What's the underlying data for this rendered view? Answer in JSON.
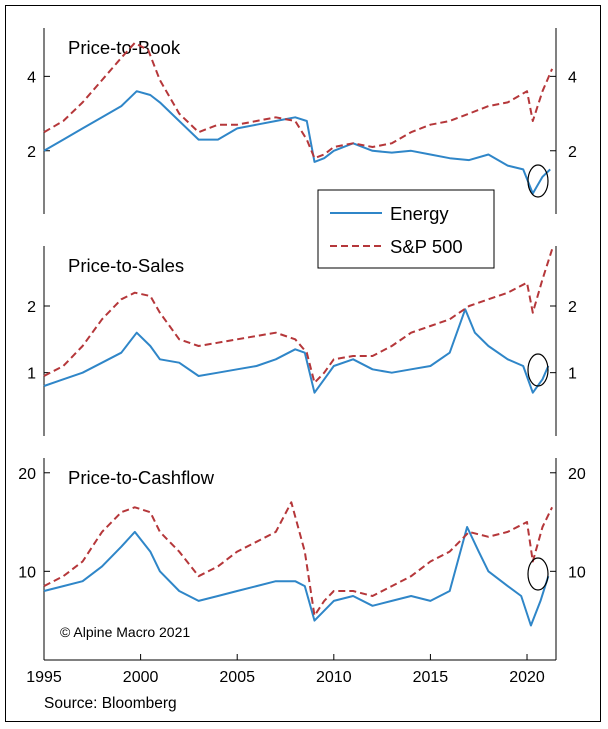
{
  "copyright": "© Alpine Macro 2021",
  "source": "Source: Bloomberg",
  "legend": {
    "energy": "Energy",
    "sp500": "S&P 500"
  },
  "colors": {
    "energy": "#2f86c8",
    "sp500": "#b5373a",
    "axis": "#000000"
  },
  "chart_data": [
    {
      "type": "line",
      "title": "Price-to-Book",
      "xlim": [
        1995,
        2021.5
      ],
      "ylim": [
        0.3,
        5.3
      ],
      "yticks": [
        2,
        4
      ],
      "x_ticks": [],
      "series": [
        {
          "name": "Energy",
          "x": [
            1995,
            1996,
            1997,
            1998,
            1999,
            1999.8,
            2000.5,
            2001,
            2002,
            2003,
            2004,
            2005,
            2006,
            2007,
            2008,
            2008.6,
            2009,
            2009.5,
            2010,
            2011,
            2012,
            2013,
            2014,
            2015,
            2016,
            2017,
            2018,
            2019,
            2019.8,
            2020.3,
            2020.8,
            2021.2
          ],
          "values": [
            2.0,
            2.3,
            2.6,
            2.9,
            3.2,
            3.6,
            3.5,
            3.3,
            2.8,
            2.3,
            2.3,
            2.6,
            2.7,
            2.8,
            2.9,
            2.8,
            1.7,
            1.8,
            2.0,
            2.2,
            2.0,
            1.95,
            2.0,
            1.9,
            1.8,
            1.75,
            1.9,
            1.6,
            1.5,
            0.85,
            1.3,
            1.5
          ]
        },
        {
          "name": "S&P 500",
          "x": [
            1995,
            1996,
            1997,
            1998,
            1999,
            1999.7,
            2000.4,
            2001,
            2002,
            2003,
            2004,
            2005,
            2006,
            2007,
            2008,
            2008.6,
            2009,
            2009.5,
            2010,
            2011,
            2012,
            2013,
            2014,
            2015,
            2016,
            2017,
            2018,
            2019,
            2020,
            2020.3,
            2020.8,
            2021.3
          ],
          "values": [
            2.5,
            2.8,
            3.3,
            3.9,
            4.5,
            4.9,
            4.7,
            3.9,
            3.0,
            2.5,
            2.7,
            2.7,
            2.8,
            2.9,
            2.8,
            2.3,
            1.8,
            1.9,
            2.1,
            2.2,
            2.1,
            2.2,
            2.5,
            2.7,
            2.8,
            3.0,
            3.2,
            3.3,
            3.6,
            2.8,
            3.6,
            4.2
          ]
        }
      ]
    },
    {
      "type": "line",
      "title": "Price-to-Sales",
      "xlim": [
        1995,
        2021.5
      ],
      "ylim": [
        0.05,
        2.9
      ],
      "yticks": [
        1,
        2
      ],
      "x_ticks": [],
      "series": [
        {
          "name": "Energy",
          "x": [
            1995,
            1996,
            1997,
            1998,
            1999,
            1999.8,
            2000.5,
            2001,
            2002,
            2003,
            2004,
            2005,
            2006,
            2007,
            2008,
            2008.5,
            2009,
            2009.5,
            2010,
            2011,
            2012,
            2013,
            2014,
            2015,
            2016,
            2016.8,
            2017.3,
            2018,
            2019,
            2019.8,
            2020.3,
            2020.8,
            2021.1
          ],
          "values": [
            0.8,
            0.9,
            1.0,
            1.15,
            1.3,
            1.6,
            1.4,
            1.2,
            1.15,
            0.95,
            1.0,
            1.05,
            1.1,
            1.2,
            1.35,
            1.3,
            0.7,
            0.9,
            1.1,
            1.2,
            1.05,
            1.0,
            1.05,
            1.1,
            1.3,
            1.95,
            1.6,
            1.4,
            1.2,
            1.1,
            0.7,
            0.9,
            1.1
          ]
        },
        {
          "name": "S&P 500",
          "x": [
            1995,
            1996,
            1997,
            1998,
            1999,
            1999.7,
            2000.5,
            2001,
            2002,
            2003,
            2004,
            2005,
            2006,
            2007,
            2008,
            2008.6,
            2009,
            2009.5,
            2010,
            2011,
            2012,
            2013,
            2014,
            2015,
            2016,
            2017,
            2018,
            2019,
            2020,
            2020.3,
            2020.8,
            2021.3
          ],
          "values": [
            0.95,
            1.1,
            1.4,
            1.8,
            2.1,
            2.2,
            2.15,
            1.9,
            1.5,
            1.4,
            1.45,
            1.5,
            1.55,
            1.6,
            1.5,
            1.3,
            0.85,
            1.0,
            1.2,
            1.25,
            1.25,
            1.4,
            1.6,
            1.7,
            1.8,
            2.0,
            2.1,
            2.2,
            2.35,
            1.9,
            2.4,
            2.85
          ]
        }
      ]
    },
    {
      "type": "line",
      "title": "Price-to-Cashflow",
      "xlim": [
        1995,
        2021.5
      ],
      "ylim": [
        1,
        21.5
      ],
      "yticks": [
        10,
        20
      ],
      "x_ticks": [
        1995,
        2000,
        2005,
        2010,
        2015,
        2020
      ],
      "series": [
        {
          "name": "Energy",
          "x": [
            1995,
            1996,
            1997,
            1998,
            1999,
            1999.7,
            2000.5,
            2001,
            2002,
            2003,
            2004,
            2005,
            2006,
            2007,
            2008,
            2008.5,
            2009,
            2009.5,
            2010,
            2011,
            2012,
            2013,
            2014,
            2015,
            2016,
            2016.9,
            2017.5,
            2018,
            2019,
            2019.7,
            2020.2,
            2020.7,
            2021.1
          ],
          "values": [
            8.0,
            8.5,
            9.0,
            10.5,
            12.5,
            14.0,
            12.0,
            10.0,
            8.0,
            7.0,
            7.5,
            8.0,
            8.5,
            9.0,
            9.0,
            8.5,
            5.0,
            6.0,
            7.0,
            7.5,
            6.5,
            7.0,
            7.5,
            7.0,
            8.0,
            14.5,
            12.0,
            10.0,
            8.5,
            7.5,
            4.5,
            7.0,
            9.5
          ]
        },
        {
          "name": "S&P 500",
          "x": [
            1995,
            1996,
            1997,
            1998,
            1999,
            1999.7,
            2000.5,
            2001,
            2002,
            2003,
            2004,
            2005,
            2006,
            2007,
            2007.8,
            2008.5,
            2009,
            2009.5,
            2010,
            2011,
            2012,
            2013,
            2014,
            2015,
            2016,
            2017,
            2018,
            2019,
            2020,
            2020.3,
            2020.8,
            2021.3
          ],
          "values": [
            8.5,
            9.5,
            11.0,
            14.0,
            16.0,
            16.5,
            16.0,
            14.0,
            12.0,
            9.5,
            10.5,
            12.0,
            13.0,
            14.0,
            17.0,
            12.0,
            5.5,
            7.0,
            8.0,
            8.0,
            7.5,
            8.5,
            9.5,
            11.0,
            12.0,
            14.0,
            13.5,
            14.0,
            15.0,
            11.0,
            14.5,
            16.5
          ]
        }
      ]
    }
  ]
}
